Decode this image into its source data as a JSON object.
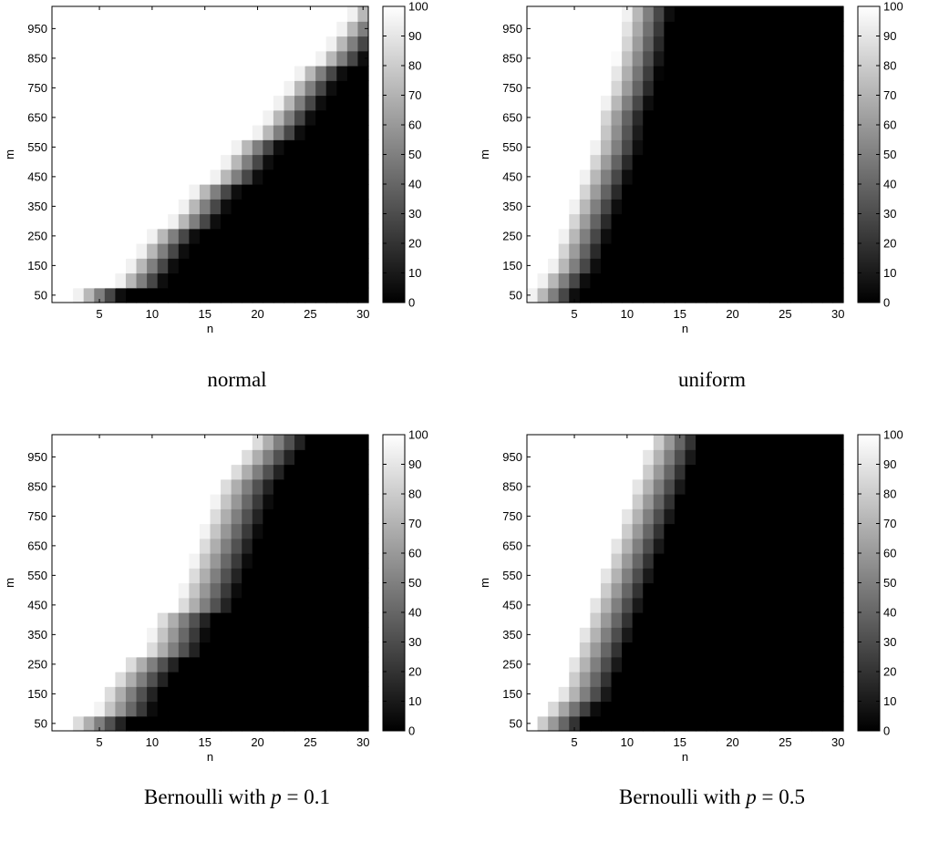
{
  "chart_data": [
    {
      "type": "heatmap",
      "caption": "normal",
      "xlabel": "n",
      "ylabel": "m",
      "x_range": [
        1,
        30
      ],
      "y_range": [
        50,
        1000
      ],
      "x_ticks": [
        5,
        10,
        15,
        20,
        25,
        30
      ],
      "y_ticks": [
        50,
        150,
        250,
        350,
        450,
        550,
        650,
        750,
        850,
        950
      ],
      "colorbar": {
        "min": 0,
        "max": 100,
        "ticks": [
          0,
          10,
          20,
          30,
          40,
          50,
          60,
          70,
          80,
          90,
          100
        ],
        "colormap": "gray"
      },
      "transition": {
        "n": [
          5,
          8,
          10,
          12,
          14,
          16,
          18,
          20,
          22,
          24,
          26,
          28,
          30,
          31
        ],
        "m": [
          50,
          50,
          150,
          250,
          300,
          400,
          450,
          550,
          600,
          700,
          800,
          850,
          950,
          1000
        ],
        "width_n": 4.5
      }
    },
    {
      "type": "heatmap",
      "caption": "uniform",
      "xlabel": "n",
      "ylabel": "m",
      "x_range": [
        1,
        30
      ],
      "y_range": [
        50,
        1000
      ],
      "x_ticks": [
        5,
        10,
        15,
        20,
        25,
        30
      ],
      "y_ticks": [
        50,
        150,
        250,
        350,
        450,
        550,
        650,
        750,
        850,
        950
      ],
      "colorbar": {
        "min": 0,
        "max": 100,
        "ticks": [
          0,
          10,
          20,
          30,
          40,
          50,
          60,
          70,
          80,
          90,
          100
        ],
        "colormap": "gray"
      },
      "transition": {
        "n": [
          3,
          5,
          6,
          7,
          8,
          9,
          9.5,
          10.5,
          11.5,
          12
        ],
        "m": [
          50,
          150,
          250,
          350,
          450,
          550,
          650,
          750,
          900,
          1000
        ],
        "width_n": 4.5
      }
    },
    {
      "type": "heatmap",
      "caption_prefix": "Bernoulli with",
      "caption_var": "p",
      "caption_suffix": " = 0.1",
      "xlabel": "n",
      "ylabel": "m",
      "x_range": [
        1,
        30
      ],
      "y_range": [
        50,
        1000
      ],
      "x_ticks": [
        5,
        10,
        15,
        20,
        25,
        30
      ],
      "y_ticks": [
        50,
        150,
        250,
        350,
        450,
        550,
        650,
        750,
        850,
        950
      ],
      "colorbar": {
        "min": 0,
        "max": 100,
        "ticks": [
          0,
          10,
          20,
          30,
          40,
          50,
          60,
          70,
          80,
          90,
          100
        ],
        "colormap": "gray"
      },
      "transition": {
        "n": [
          5,
          7,
          8,
          10,
          12,
          13,
          15,
          16,
          17,
          18,
          19,
          20,
          21,
          22
        ],
        "m": [
          50,
          50,
          150,
          250,
          300,
          400,
          450,
          550,
          650,
          750,
          850,
          900,
          950,
          1000
        ],
        "width_n": 5.5
      }
    },
    {
      "type": "heatmap",
      "caption_prefix": "Bernoulli with",
      "caption_var": "p",
      "caption_suffix": " = 0.5",
      "xlabel": "n",
      "ylabel": "m",
      "x_range": [
        1,
        30
      ],
      "y_range": [
        50,
        1000
      ],
      "x_ticks": [
        5,
        10,
        15,
        20,
        25,
        30
      ],
      "y_ticks": [
        50,
        150,
        250,
        350,
        450,
        550,
        650,
        750,
        850,
        950
      ],
      "colorbar": {
        "min": 0,
        "max": 100,
        "ticks": [
          0,
          10,
          20,
          30,
          40,
          50,
          60,
          70,
          80,
          90,
          100
        ],
        "colormap": "gray"
      },
      "transition": {
        "n": [
          3.5,
          6,
          7,
          8,
          9,
          10,
          11,
          12,
          13,
          14,
          14.5
        ],
        "m": [
          50,
          150,
          250,
          350,
          450,
          550,
          650,
          750,
          850,
          950,
          1000
        ],
        "width_n": 5
      }
    }
  ]
}
